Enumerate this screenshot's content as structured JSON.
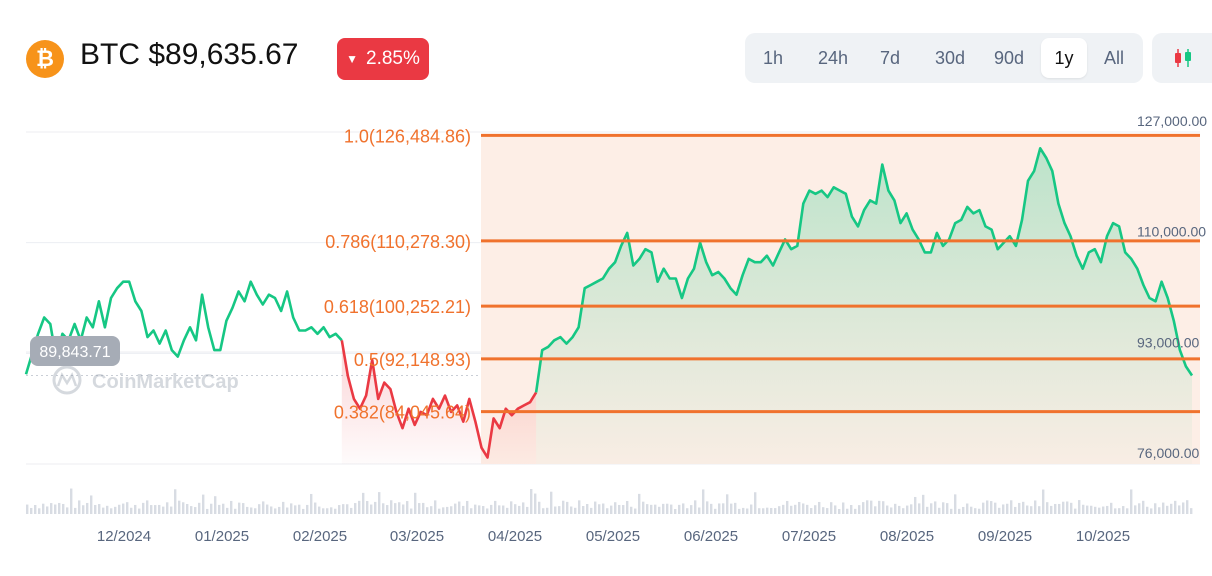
{
  "header": {
    "coin_symbol_icon": "bitcoin-icon",
    "coin_icon_glyph": "₿",
    "title": "BTC $89,635.67",
    "change": "2.85%",
    "change_direction": "down"
  },
  "range_tabs": [
    {
      "label": "1h",
      "active": false
    },
    {
      "label": "24h",
      "active": false
    },
    {
      "label": "7d",
      "active": false
    },
    {
      "label": "30d",
      "active": false
    },
    {
      "label": "90d",
      "active": false
    },
    {
      "label": "1y",
      "active": true
    },
    {
      "label": "All",
      "active": false
    }
  ],
  "chart_type_icon": "candlestick-icon",
  "colors": {
    "up": "#16c784",
    "down": "#ea3943",
    "fib": "#f0722d",
    "fib_fill": "#fdeee6",
    "badge": "#ea3943",
    "bitcoin": "#f7931a"
  },
  "chart_data": {
    "type": "line",
    "ylim": [
      76000,
      127000
    ],
    "y_axis_labels": [
      {
        "value": 127000,
        "label": "127,000.00"
      },
      {
        "value": 110000,
        "label": "110,000.00"
      },
      {
        "value": 93000,
        "label": "93,000.00"
      },
      {
        "value": 76000,
        "label": "76,000.00"
      }
    ],
    "x_tick_labels": [
      "12/2024",
      "01/2025",
      "02/2025",
      "03/2025",
      "04/2025",
      "05/2025",
      "06/2025",
      "07/2025",
      "08/2025",
      "09/2025",
      "10/2025"
    ],
    "current_price_label": "89,843.71",
    "watermark": "CoinMarketCap",
    "fib_levels": [
      {
        "ratio": "1.0",
        "value": 126484.86,
        "label": "1.0(126,484.86)"
      },
      {
        "ratio": "0.786",
        "value": 110278.3,
        "label": "0.786(110,278.30)"
      },
      {
        "ratio": "0.618",
        "value": 100252.21,
        "label": "0.618(100,252.21)"
      },
      {
        "ratio": "0.5",
        "value": 92148.93,
        "label": "0.5(92,148.93)"
      },
      {
        "ratio": "0.382",
        "value": 84045.64,
        "label": "0.382(84,045.64)"
      }
    ],
    "price_points": [
      [
        0,
        89800
      ],
      [
        1,
        96000
      ],
      [
        1.5,
        98500
      ],
      [
        2,
        97500
      ],
      [
        2.5,
        92000
      ],
      [
        3,
        96000
      ],
      [
        3.5,
        95000
      ],
      [
        4,
        97500
      ],
      [
        4.5,
        95000
      ],
      [
        5,
        98500
      ],
      [
        5.5,
        97000
      ],
      [
        6,
        101000
      ],
      [
        6.5,
        97000
      ],
      [
        7,
        101500
      ],
      [
        7.5,
        103000
      ],
      [
        8,
        104000
      ],
      [
        8.5,
        104000
      ],
      [
        9,
        101000
      ],
      [
        9.5,
        99500
      ],
      [
        10,
        95500
      ],
      [
        10.5,
        96500
      ],
      [
        11,
        94500
      ],
      [
        11.5,
        96500
      ],
      [
        12,
        93500
      ],
      [
        12.5,
        92500
      ],
      [
        13,
        95000
      ],
      [
        13.5,
        97000
      ],
      [
        14,
        95000
      ],
      [
        14.5,
        102000
      ],
      [
        15,
        97000
      ],
      [
        15.5,
        93500
      ],
      [
        16,
        93500
      ],
      [
        16.5,
        98000
      ],
      [
        17,
        100000
      ],
      [
        17.5,
        102500
      ],
      [
        18,
        101000
      ],
      [
        18.5,
        104000
      ],
      [
        19,
        102000
      ],
      [
        19.5,
        100500
      ],
      [
        20,
        102000
      ],
      [
        20.5,
        101500
      ],
      [
        21,
        99500
      ],
      [
        21.5,
        102500
      ],
      [
        22,
        98500
      ],
      [
        22.5,
        96500
      ],
      [
        23,
        96500
      ],
      [
        23.5,
        97000
      ],
      [
        24,
        96000
      ],
      [
        24.5,
        97000
      ],
      [
        25,
        95500
      ],
      [
        25.5,
        96000
      ],
      [
        26,
        95000
      ],
      [
        26.5,
        89500
      ],
      [
        27,
        86000
      ],
      [
        27.5,
        84500
      ],
      [
        28,
        86500
      ],
      [
        28.5,
        92000
      ],
      [
        29,
        86000
      ],
      [
        29.5,
        88500
      ],
      [
        30,
        87500
      ],
      [
        30.5,
        84000
      ],
      [
        31,
        81500
      ],
      [
        31.5,
        84500
      ],
      [
        32,
        82000
      ],
      [
        32.5,
        84000
      ],
      [
        33,
        83500
      ],
      [
        33.5,
        86000
      ],
      [
        34,
        84500
      ],
      [
        34.5,
        86500
      ],
      [
        35,
        84000
      ],
      [
        35.5,
        85000
      ],
      [
        36,
        82500
      ],
      [
        36.5,
        86000
      ],
      [
        37,
        82500
      ],
      [
        37.5,
        78500
      ],
      [
        38,
        77000
      ],
      [
        38.5,
        83000
      ],
      [
        39,
        81500
      ],
      [
        39.5,
        84500
      ],
      [
        40,
        83500
      ],
      [
        40.5,
        84500
      ],
      [
        41,
        85000
      ],
      [
        41.5,
        85500
      ],
      [
        42,
        87000
      ],
      [
        42.5,
        93500
      ],
      [
        43,
        94000
      ],
      [
        43.5,
        95000
      ],
      [
        44,
        95500
      ],
      [
        44.5,
        94500
      ],
      [
        45,
        95500
      ],
      [
        45.5,
        97000
      ],
      [
        46,
        103000
      ],
      [
        46.5,
        103500
      ],
      [
        47,
        104000
      ],
      [
        47.5,
        104500
      ],
      [
        48,
        106000
      ],
      [
        48.5,
        107000
      ],
      [
        49,
        109500
      ],
      [
        49.5,
        111500
      ],
      [
        50,
        106500
      ],
      [
        50.5,
        107500
      ],
      [
        51,
        109000
      ],
      [
        51.5,
        108500
      ],
      [
        52,
        104000
      ],
      [
        52.5,
        106000
      ],
      [
        53,
        104500
      ],
      [
        53.5,
        104500
      ],
      [
        54,
        101500
      ],
      [
        54.5,
        104500
      ],
      [
        55,
        106000
      ],
      [
        55.5,
        110000
      ],
      [
        56,
        107000
      ],
      [
        56.5,
        105000
      ],
      [
        57,
        105500
      ],
      [
        57.5,
        104500
      ],
      [
        58,
        103000
      ],
      [
        58.5,
        102000
      ],
      [
        59,
        105000
      ],
      [
        59.5,
        107500
      ],
      [
        60,
        107000
      ],
      [
        60.5,
        107000
      ],
      [
        61,
        108000
      ],
      [
        61.5,
        106500
      ],
      [
        62,
        108500
      ],
      [
        62.5,
        110500
      ],
      [
        63,
        109000
      ],
      [
        63.5,
        109500
      ],
      [
        64,
        116000
      ],
      [
        64.5,
        118000
      ],
      [
        65,
        117500
      ],
      [
        65.5,
        118000
      ],
      [
        66,
        117000
      ],
      [
        66.5,
        118500
      ],
      [
        67,
        118000
      ],
      [
        67.5,
        117500
      ],
      [
        68,
        114000
      ],
      [
        68.5,
        112500
      ],
      [
        69,
        115000
      ],
      [
        69.5,
        116500
      ],
      [
        70,
        116000
      ],
      [
        70.5,
        122000
      ],
      [
        71,
        118000
      ],
      [
        71.5,
        116500
      ],
      [
        72,
        113000
      ],
      [
        72.5,
        114500
      ],
      [
        73,
        112000
      ],
      [
        73.5,
        110500
      ],
      [
        74,
        108500
      ],
      [
        74.5,
        108500
      ],
      [
        75,
        111500
      ],
      [
        75.5,
        109500
      ],
      [
        76,
        110500
      ],
      [
        76.5,
        113000
      ],
      [
        77,
        113500
      ],
      [
        77.5,
        115500
      ],
      [
        78,
        114500
      ],
      [
        78.5,
        115000
      ],
      [
        79,
        112500
      ],
      [
        79.5,
        112000
      ],
      [
        80,
        109000
      ],
      [
        80.5,
        110000
      ],
      [
        81,
        111000
      ],
      [
        81.5,
        109500
      ],
      [
        82,
        113500
      ],
      [
        82.5,
        119500
      ],
      [
        83,
        121000
      ],
      [
        83.5,
        124500
      ],
      [
        84,
        123000
      ],
      [
        84.5,
        121000
      ],
      [
        85,
        116000
      ],
      [
        85.5,
        113000
      ],
      [
        86,
        111000
      ],
      [
        86.5,
        108000
      ],
      [
        87,
        106000
      ],
      [
        87.5,
        108500
      ],
      [
        88,
        109000
      ],
      [
        88.5,
        107000
      ],
      [
        89,
        111000
      ],
      [
        89.5,
        113000
      ],
      [
        90,
        112500
      ],
      [
        90.5,
        108500
      ],
      [
        91,
        107500
      ],
      [
        91.5,
        106000
      ],
      [
        92,
        103500
      ],
      [
        92.5,
        101500
      ],
      [
        93,
        101000
      ],
      [
        93.5,
        104000
      ],
      [
        94,
        101500
      ],
      [
        94.5,
        98000
      ],
      [
        95,
        93500
      ],
      [
        95.5,
        91000
      ],
      [
        96,
        89600
      ]
    ]
  }
}
